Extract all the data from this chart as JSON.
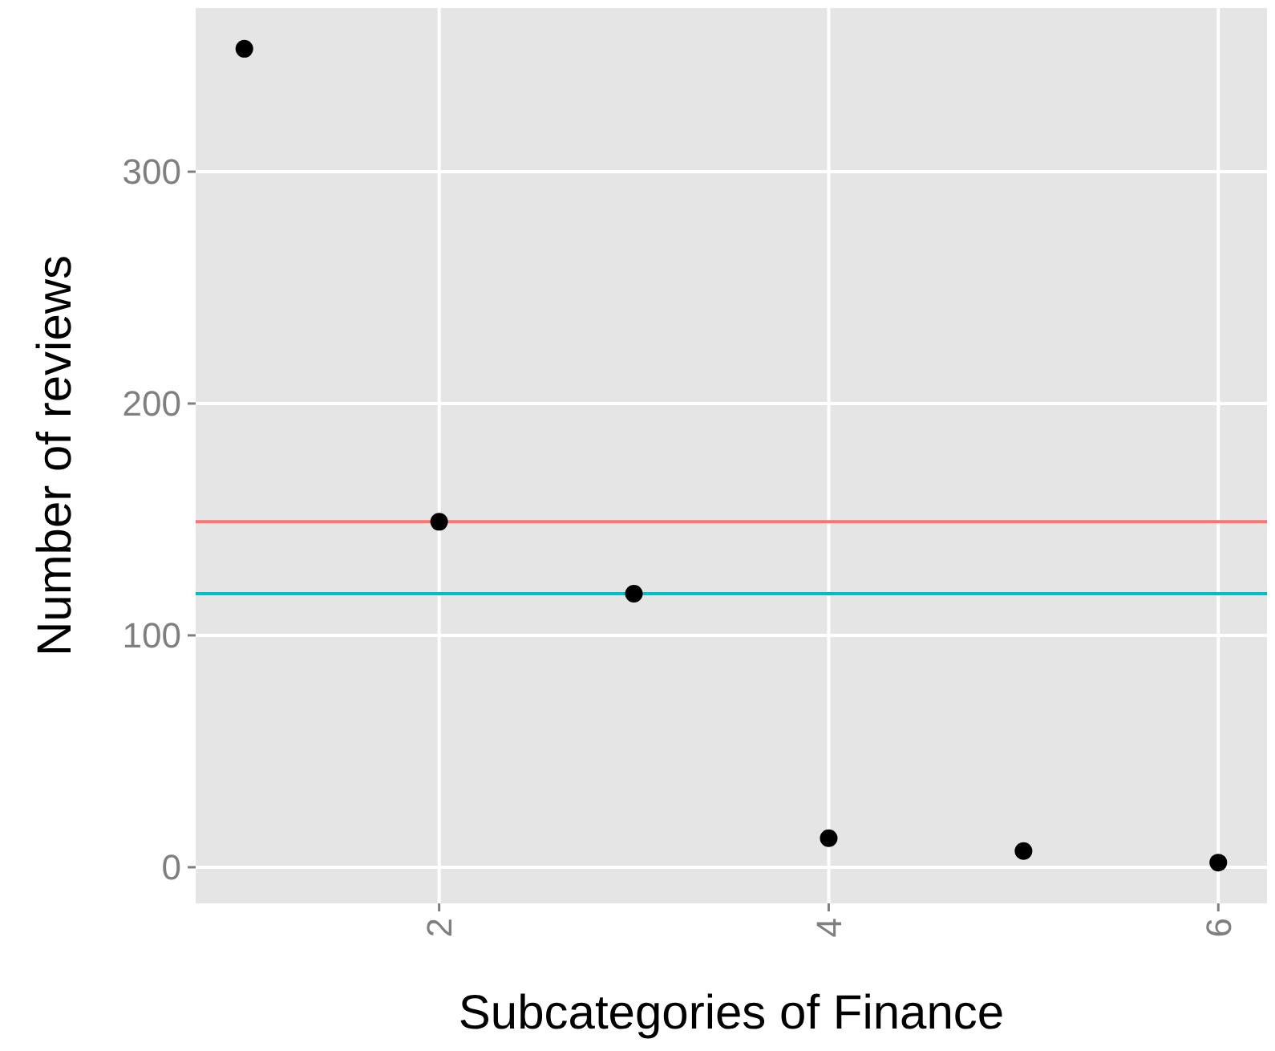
{
  "chart_data": {
    "type": "scatter",
    "xlabel": "Subcategories of Finance",
    "ylabel": "Number of reviews",
    "x": [
      1,
      2,
      3,
      4,
      5,
      6
    ],
    "values": [
      353,
      149,
      118,
      12.5,
      7,
      2
    ],
    "color": "#000000",
    "marker": "circle",
    "xlim": [
      0.75,
      6.25
    ],
    "xticks": [
      2,
      4,
      6
    ],
    "ylim": [
      -15.6,
      370.6
    ],
    "yticks": [
      0,
      100,
      200,
      300
    ],
    "grid": true,
    "ref_lines": [
      {
        "axis": "y",
        "value": 149,
        "color": "#F8766D"
      },
      {
        "axis": "y",
        "value": 118,
        "color": "#00BFC4"
      }
    ]
  }
}
